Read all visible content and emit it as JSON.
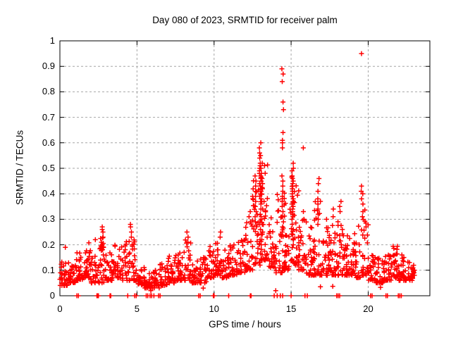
{
  "chart_data": {
    "type": "scatter",
    "title": "Day 080 of 2023, SRMTID for receiver palm",
    "xlabel": "GPS time / hours",
    "ylabel": "SRMTID / TECUs",
    "xlim": [
      0,
      24
    ],
    "ylim": [
      0,
      1
    ],
    "xticks": [
      {
        "value": 0,
        "label": "0"
      },
      {
        "value": 5,
        "label": "5"
      },
      {
        "value": 10,
        "label": "10"
      },
      {
        "value": 15,
        "label": "15"
      },
      {
        "value": 20,
        "label": "20"
      }
    ],
    "yticks": [
      {
        "value": 0,
        "label": "0"
      },
      {
        "value": 0.1,
        "label": "0.1"
      },
      {
        "value": 0.2,
        "label": "0.2"
      },
      {
        "value": 0.3,
        "label": "0.3"
      },
      {
        "value": 0.4,
        "label": "0.4"
      },
      {
        "value": 0.5,
        "label": "0.5"
      },
      {
        "value": 0.6,
        "label": "0.6"
      },
      {
        "value": 0.7,
        "label": "0.7"
      },
      {
        "value": 0.8,
        "label": "0.8"
      },
      {
        "value": 0.9,
        "label": "0.9"
      },
      {
        "value": 1,
        "label": "1"
      }
    ],
    "grid": {
      "on": true,
      "style": "dashed",
      "color": "#a6a6a6"
    },
    "legend": {
      "visible": false
    },
    "marker": {
      "shape": "plus",
      "color": "#ff0000",
      "size": 7
    },
    "axis_color": "#000000",
    "background": "#ffffff",
    "series": {
      "name": "SRMTID",
      "x_data_range": [
        0,
        23.05
      ],
      "envelope_bins_format": [
        "start_hour(width 0.5h)",
        "y_low",
        "y_high",
        "point_count"
      ],
      "envelope_bins": [
        [
          0.0,
          0.04,
          0.16,
          30
        ],
        [
          0.5,
          0.05,
          0.13,
          30
        ],
        [
          1.0,
          0.06,
          0.17,
          32
        ],
        [
          1.5,
          0.07,
          0.21,
          32
        ],
        [
          2.0,
          0.05,
          0.16,
          28
        ],
        [
          2.5,
          0.05,
          0.24,
          32
        ],
        [
          3.0,
          0.06,
          0.18,
          30
        ],
        [
          3.5,
          0.07,
          0.2,
          28
        ],
        [
          4.0,
          0.06,
          0.22,
          28
        ],
        [
          4.5,
          0.06,
          0.26,
          30
        ],
        [
          5.0,
          0.04,
          0.12,
          28
        ],
        [
          5.5,
          0.03,
          0.09,
          26
        ],
        [
          6.0,
          0.03,
          0.1,
          26
        ],
        [
          6.5,
          0.04,
          0.13,
          28
        ],
        [
          7.0,
          0.05,
          0.16,
          30
        ],
        [
          7.5,
          0.06,
          0.17,
          30
        ],
        [
          8.0,
          0.06,
          0.22,
          28
        ],
        [
          8.5,
          0.05,
          0.14,
          28
        ],
        [
          9.0,
          0.05,
          0.15,
          28
        ],
        [
          9.5,
          0.07,
          0.2,
          30
        ],
        [
          10.0,
          0.08,
          0.23,
          30
        ],
        [
          10.5,
          0.07,
          0.18,
          30
        ],
        [
          11.0,
          0.08,
          0.2,
          30
        ],
        [
          11.5,
          0.09,
          0.23,
          30
        ],
        [
          12.0,
          0.1,
          0.3,
          32
        ],
        [
          12.5,
          0.12,
          0.46,
          36
        ],
        [
          13.0,
          0.14,
          0.52,
          38
        ],
        [
          13.5,
          0.11,
          0.33,
          30
        ],
        [
          14.0,
          0.09,
          0.42,
          34
        ],
        [
          14.5,
          0.1,
          0.42,
          34
        ],
        [
          15.0,
          0.12,
          0.48,
          34
        ],
        [
          15.5,
          0.1,
          0.3,
          30
        ],
        [
          16.0,
          0.08,
          0.28,
          30
        ],
        [
          16.5,
          0.08,
          0.38,
          30
        ],
        [
          17.0,
          0.08,
          0.28,
          32
        ],
        [
          17.5,
          0.08,
          0.28,
          32
        ],
        [
          18.0,
          0.08,
          0.3,
          32
        ],
        [
          18.5,
          0.08,
          0.24,
          30
        ],
        [
          19.0,
          0.07,
          0.28,
          30
        ],
        [
          19.5,
          0.08,
          0.34,
          30
        ],
        [
          20.0,
          0.06,
          0.19,
          30
        ],
        [
          20.5,
          0.05,
          0.15,
          30
        ],
        [
          21.0,
          0.06,
          0.16,
          30
        ],
        [
          21.5,
          0.07,
          0.2,
          32
        ],
        [
          22.0,
          0.06,
          0.17,
          30
        ],
        [
          22.5,
          0.06,
          0.14,
          26
        ]
      ],
      "spike_columns": [
        {
          "h": 2.75,
          "ys": [
            0.27,
            0.26,
            0.25,
            0.23,
            0.21
          ]
        },
        {
          "h": 4.6,
          "ys": [
            0.28,
            0.27,
            0.25,
            0.23
          ]
        },
        {
          "h": 8.3,
          "ys": [
            0.25,
            0.23,
            0.21
          ]
        },
        {
          "h": 10.4,
          "ys": [
            0.25,
            0.23
          ]
        },
        {
          "h": 12.3,
          "ys": [
            0.33,
            0.31,
            0.29
          ]
        },
        {
          "h": 12.7,
          "ys": [
            0.47,
            0.45,
            0.43,
            0.41,
            0.39,
            0.37,
            0.35,
            0.33,
            0.31,
            0.29
          ]
        },
        {
          "h": 13.0,
          "ys": [
            0.6,
            0.58,
            0.56,
            0.55,
            0.54,
            0.52,
            0.51,
            0.5,
            0.49,
            0.48,
            0.47,
            0.46,
            0.45,
            0.44,
            0.43,
            0.42,
            0.41,
            0.4,
            0.38,
            0.36,
            0.34,
            0.32,
            0.3,
            0.28,
            0.26,
            0.24,
            0.22,
            0.2
          ]
        },
        {
          "h": 13.1,
          "ys": [
            0.52,
            0.5,
            0.48,
            0.46,
            0.44,
            0.42,
            0.4,
            0.37,
            0.34,
            0.31,
            0.28,
            0.25,
            0.22
          ]
        },
        {
          "h": 14.45,
          "ys": [
            0.89,
            0.87,
            0.84,
            0.76,
            0.73,
            0.64,
            0.61,
            0.6,
            0.58,
            0.47,
            0.45,
            0.43,
            0.41,
            0.39,
            0.37,
            0.35,
            0.33,
            0.31,
            0.29,
            0.27,
            0.25
          ]
        },
        {
          "h": 15.1,
          "ys": [
            0.52,
            0.5,
            0.49,
            0.47,
            0.46,
            0.45,
            0.44,
            0.43,
            0.42,
            0.41,
            0.4,
            0.39,
            0.38,
            0.37,
            0.36,
            0.35,
            0.34,
            0.33,
            0.32,
            0.31,
            0.3,
            0.28,
            0.26,
            0.24,
            0.22,
            0.2
          ]
        },
        {
          "h": 15.8,
          "ys": [
            0.58,
            0.33,
            0.3
          ]
        },
        {
          "h": 16.75,
          "ys": [
            0.46,
            0.44,
            0.41,
            0.38,
            0.36,
            0.34,
            0.32,
            0.3,
            0.28
          ]
        },
        {
          "h": 17.75,
          "ys": [
            0.34,
            0.31
          ]
        },
        {
          "h": 18.2,
          "ys": [
            0.37,
            0.35,
            0.33
          ]
        },
        {
          "h": 19.6,
          "ys": [
            0.95,
            0.43,
            0.41,
            0.4,
            0.38,
            0.36,
            0.33,
            0.31
          ]
        }
      ],
      "single_points": [
        [
          0.35,
          0.19
        ],
        [
          2.3,
          0.22
        ],
        [
          5.9,
          0.02
        ],
        [
          9.3,
          0.03
        ],
        [
          14.0,
          0.02
        ],
        [
          16.9,
          0.035
        ],
        [
          17.3,
          0.3
        ],
        [
          17.7,
          0.037
        ],
        [
          20.8,
          0.033
        ],
        [
          22.95,
          0.12
        ],
        [
          23.0,
          0.1
        ],
        [
          23.0,
          0.08
        ]
      ],
      "zero_value_hours": [
        1.1,
        1.2,
        2.4,
        2.45,
        2.5,
        3.25,
        3.3,
        4.4,
        4.85,
        4.95,
        5.6,
        5.7,
        5.85,
        5.95,
        6.1,
        6.4,
        6.5,
        9.0,
        9.1,
        9.95,
        10.0,
        10.95,
        12.35,
        12.4,
        13.9,
        14.1,
        14.3,
        14.45,
        15.0,
        15.9,
        16.05,
        17.95,
        18.05,
        18.15,
        20.15,
        20.25,
        21.15,
        21.25,
        21.95,
        22.05,
        22.15
      ]
    },
    "seed": 42
  }
}
